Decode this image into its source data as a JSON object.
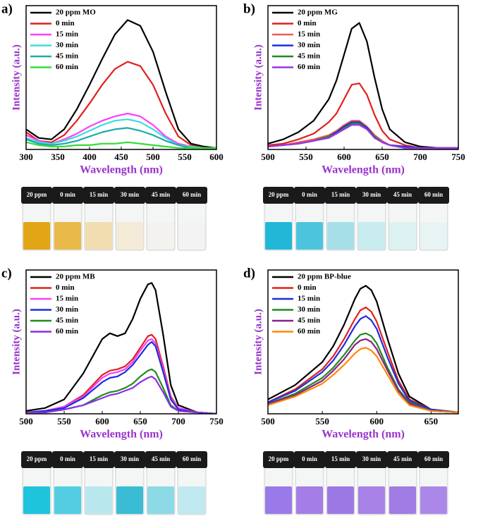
{
  "chart_data": [
    {
      "type": "line",
      "panel": "a)",
      "x_label": "Wavelength (nm)",
      "y_label": "Intensity (a.u.)",
      "x": [
        300,
        320,
        340,
        360,
        380,
        400,
        420,
        440,
        460,
        480,
        500,
        520,
        540,
        560,
        580,
        600
      ],
      "xlim": [
        300,
        600
      ],
      "xticks": [
        300,
        350,
        400,
        450,
        500,
        550,
        600
      ],
      "ylim": [
        0,
        100
      ],
      "series": [
        {
          "name": "20 ppm MO",
          "color": "#000000",
          "values": [
            14,
            8,
            7,
            14,
            28,
            45,
            63,
            80,
            90,
            86,
            68,
            40,
            14,
            4,
            2,
            1
          ]
        },
        {
          "name": "0 min",
          "color": "#e0201c",
          "values": [
            12,
            6,
            5,
            10,
            20,
            32,
            45,
            56,
            61,
            58,
            45,
            25,
            9,
            3,
            1,
            1
          ]
        },
        {
          "name": "15 min",
          "color": "#ff3cff",
          "values": [
            10,
            6,
            4,
            7,
            11,
            16,
            20,
            23,
            25,
            23,
            17,
            9,
            4,
            2,
            1,
            1
          ]
        },
        {
          "name": "30 min",
          "color": "#3cdcdc",
          "values": [
            8,
            5,
            4,
            6,
            9,
            13,
            17,
            20,
            21,
            19,
            14,
            8,
            3,
            2,
            1,
            1
          ]
        },
        {
          "name": "45 min",
          "color": "#1eaaaa",
          "values": [
            7,
            4,
            3,
            4,
            6,
            9,
            12,
            14,
            15,
            13,
            10,
            6,
            3,
            1,
            1,
            1
          ]
        },
        {
          "name": "60 min",
          "color": "#33dd33",
          "values": [
            5,
            3,
            2,
            2,
            3,
            3,
            4,
            4,
            5,
            4,
            3,
            2,
            1,
            1,
            1,
            1
          ]
        }
      ],
      "vial_labels": [
        "20 ppm",
        "0 min",
        "15 min",
        "30 min",
        "45 min",
        "60 min"
      ],
      "vial_colors": [
        "#e2a516",
        "#e9b94a",
        "#f1ddb0",
        "#f3ead8",
        "#f4f2ee",
        "#f3f3f3"
      ]
    },
    {
      "type": "line",
      "panel": "b)",
      "x_label": "Wavelength (nm)",
      "y_label": "Intensity (a.u.)",
      "x": [
        500,
        520,
        540,
        560,
        580,
        590,
        600,
        610,
        620,
        630,
        640,
        650,
        660,
        680,
        700,
        725,
        750
      ],
      "xlim": [
        500,
        750
      ],
      "xticks": [
        500,
        550,
        600,
        650,
        700,
        750
      ],
      "ylim": [
        0,
        100
      ],
      "series": [
        {
          "name": "20 ppm MG",
          "color": "#000000",
          "values": [
            4,
            7,
            12,
            20,
            35,
            48,
            66,
            84,
            88,
            75,
            50,
            28,
            14,
            5,
            2,
            1,
            1
          ]
        },
        {
          "name": "0 min",
          "color": "#e0201c",
          "values": [
            3,
            4,
            7,
            11,
            19,
            25,
            35,
            45,
            46,
            38,
            24,
            13,
            7,
            3,
            1,
            1,
            1
          ]
        },
        {
          "name": "15 min",
          "color": "#f05a5a",
          "values": [
            2,
            3,
            5,
            7,
            10,
            13,
            17,
            20,
            20,
            16,
            10,
            6,
            3,
            2,
            1,
            1,
            1
          ]
        },
        {
          "name": "30 min",
          "color": "#1a2ee0",
          "values": [
            2,
            3,
            4,
            6,
            9,
            12,
            16,
            19,
            19,
            15,
            9,
            5,
            3,
            2,
            1,
            1,
            1
          ]
        },
        {
          "name": "45 min",
          "color": "#1f8a1f",
          "values": [
            2,
            3,
            4,
            6,
            9,
            11,
            15,
            18,
            18,
            14,
            9,
            5,
            3,
            1,
            1,
            1,
            1
          ]
        },
        {
          "name": "60 min",
          "color": "#9933ee",
          "values": [
            2,
            3,
            4,
            6,
            8,
            11,
            14,
            17,
            17,
            14,
            8,
            5,
            3,
            1,
            1,
            1,
            1
          ]
        }
      ],
      "vial_labels": [
        "20 ppm",
        "0 min",
        "15 min",
        "30 min",
        "45 min",
        "60 min"
      ],
      "vial_colors": [
        "#21b8d8",
        "#4cc4de",
        "#a6dfe8",
        "#c8ecef",
        "#dcf1f1",
        "#e8f4f4"
      ]
    },
    {
      "type": "line",
      "panel": "c)",
      "x_label": "Wavelength (nm)",
      "y_label": "Intensity (a.u.)",
      "x": [
        500,
        525,
        550,
        575,
        600,
        610,
        620,
        630,
        640,
        650,
        660,
        665,
        670,
        680,
        690,
        700,
        725,
        750
      ],
      "xlim": [
        500,
        750
      ],
      "xticks": [
        500,
        550,
        600,
        650,
        700,
        750
      ],
      "ylim": [
        0,
        100
      ],
      "series": [
        {
          "name": "20 ppm MB",
          "color": "#000000",
          "values": [
            2,
            4,
            10,
            28,
            52,
            56,
            54,
            56,
            66,
            80,
            90,
            91,
            86,
            55,
            20,
            6,
            1,
            0
          ]
        },
        {
          "name": "0 min",
          "color": "#e0201c",
          "values": [
            1,
            2,
            5,
            13,
            27,
            30,
            31,
            33,
            38,
            46,
            54,
            55,
            52,
            33,
            12,
            4,
            1,
            0
          ]
        },
        {
          "name": "15 min",
          "color": "#ff3cff",
          "values": [
            1,
            2,
            5,
            12,
            25,
            28,
            29,
            31,
            36,
            44,
            51,
            52,
            49,
            31,
            11,
            4,
            1,
            0
          ]
        },
        {
          "name": "30 min",
          "color": "#1a2ee0",
          "values": [
            1,
            2,
            4,
            11,
            22,
            25,
            26,
            29,
            34,
            41,
            48,
            50,
            47,
            29,
            10,
            3,
            1,
            0
          ]
        },
        {
          "name": "45 min",
          "color": "#1f8a1f",
          "values": [
            1,
            1,
            3,
            6,
            13,
            15,
            16,
            18,
            21,
            26,
            30,
            31,
            29,
            18,
            6,
            2,
            1,
            0
          ]
        },
        {
          "name": "60 min",
          "color": "#8a2ee8",
          "values": [
            1,
            1,
            3,
            6,
            11,
            13,
            14,
            16,
            18,
            22,
            25,
            26,
            24,
            15,
            5,
            2,
            1,
            0
          ]
        }
      ],
      "vial_labels": [
        "20 ppm",
        "0 min",
        "15 min",
        "30 min",
        "45 min",
        "60 min"
      ],
      "vial_colors": [
        "#1ec4dc",
        "#52cde2",
        "#b8e8ee",
        "#39bcd4",
        "#8dd9e6",
        "#c0e9f0"
      ]
    },
    {
      "type": "line",
      "panel": "d)",
      "x_label": "Wavelength (nm)",
      "y_label": "Intensity (a.u.)",
      "x": [
        500,
        525,
        550,
        560,
        570,
        580,
        585,
        590,
        595,
        600,
        610,
        620,
        630,
        650,
        675
      ],
      "xlim": [
        500,
        675
      ],
      "xticks": [
        500,
        550,
        600,
        650
      ],
      "ylim": [
        0,
        100
      ],
      "series": [
        {
          "name": "20 ppm BP-blue",
          "color": "#000000",
          "values": [
            10,
            20,
            36,
            47,
            62,
            80,
            87,
            89,
            86,
            78,
            52,
            28,
            12,
            3,
            1
          ]
        },
        {
          "name": "0 min",
          "color": "#e0201c",
          "values": [
            8,
            17,
            31,
            40,
            52,
            66,
            72,
            74,
            71,
            64,
            43,
            23,
            10,
            3,
            1
          ]
        },
        {
          "name": "15 min",
          "color": "#1a2ee0",
          "values": [
            8,
            16,
            29,
            37,
            48,
            61,
            66,
            68,
            65,
            59,
            39,
            21,
            9,
            3,
            1
          ]
        },
        {
          "name": "30 min",
          "color": "#1f8a1f",
          "values": [
            7,
            14,
            25,
            32,
            41,
            51,
            55,
            56,
            54,
            49,
            32,
            17,
            8,
            2,
            1
          ]
        },
        {
          "name": "45 min",
          "color": "#882288",
          "values": [
            7,
            13,
            23,
            30,
            38,
            48,
            51,
            52,
            50,
            45,
            30,
            16,
            7,
            2,
            1
          ]
        },
        {
          "name": "60 min",
          "color": "#ff8800",
          "values": [
            6,
            12,
            21,
            27,
            34,
            42,
            45,
            46,
            44,
            40,
            27,
            14,
            6,
            2,
            1
          ]
        }
      ],
      "vial_labels": [
        "20 ppm",
        "0 min",
        "15 min",
        "30 min",
        "45 min",
        "60 min"
      ],
      "vial_colors": [
        "#9a7ae8",
        "#a47ee6",
        "#9c78e4",
        "#a882e6",
        "#a07ce4",
        "#ab88e8"
      ]
    }
  ]
}
